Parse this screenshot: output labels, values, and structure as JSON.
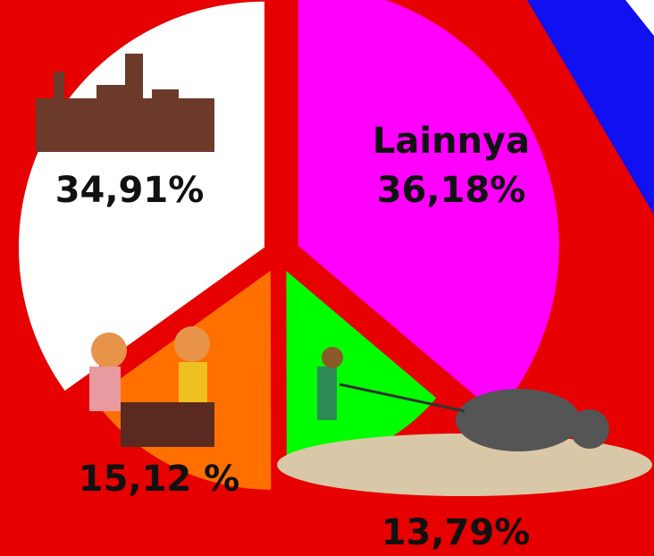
{
  "chart_data": {
    "type": "pie",
    "categories": [
      "Lainnya",
      null,
      null,
      null
    ],
    "values": [
      36.18,
      13.79,
      15.12,
      34.91
    ],
    "value_labels": [
      "36,18%",
      "13,79%",
      "15,12 %",
      "34,91%"
    ],
    "colors": [
      "#ff00ff",
      "#00ff00",
      "#ff7000",
      "#ffffff"
    ]
  }
}
